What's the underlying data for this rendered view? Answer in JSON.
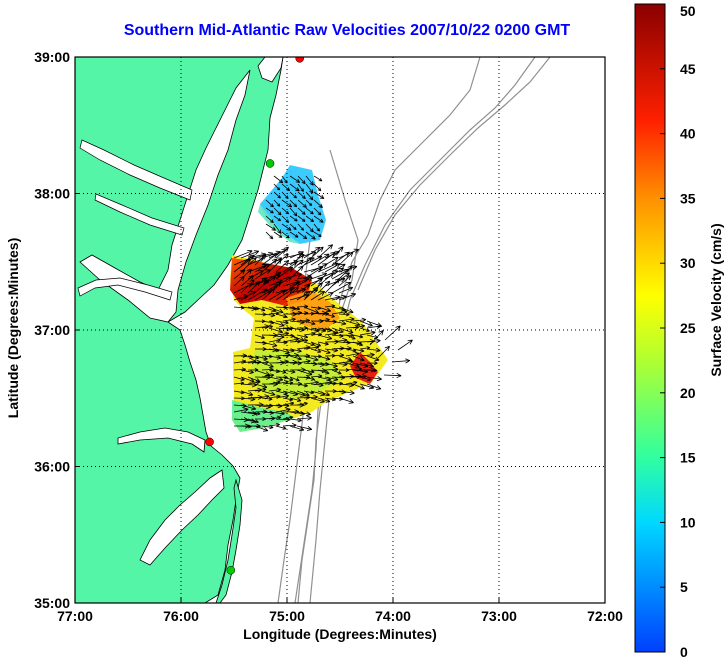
{
  "title": "Southern Mid-Atlantic Raw Velocities 2007/10/22 0200 GMT",
  "xlabel": "Longitude (Degrees:Minutes)",
  "ylabel": "Latitude (Degrees:Minutes)",
  "colorbar": {
    "label": "Surface Velocity (cm/s)",
    "min": 0,
    "max": 50,
    "ticks": [
      "0",
      "5",
      "10",
      "15",
      "20",
      "25",
      "30",
      "35",
      "40",
      "45",
      "50"
    ]
  },
  "axes": {
    "x_ticks": [
      "77:00",
      "76:00",
      "75:00",
      "74:00",
      "73:00",
      "72:00"
    ],
    "y_ticks": [
      "39:00",
      "38:00",
      "37:00",
      "36:00",
      "35:00"
    ],
    "lon_range": [
      -77,
      -72
    ],
    "lat_range": [
      35,
      39
    ],
    "grid": "dotted"
  },
  "colors": {
    "land": "#55f5a8",
    "coast": "#000000",
    "bathymetry": "#909090",
    "site_active": "#ff0000",
    "site_inactive": "#00cc00",
    "title": "#0000ff"
  },
  "sites": [
    {
      "status": "active",
      "lon": -74.88,
      "lat": 38.99
    },
    {
      "status": "inactive",
      "lon": -75.16,
      "lat": 38.22
    },
    {
      "status": "active",
      "lon": -75.73,
      "lat": 36.18
    },
    {
      "status": "inactive",
      "lon": -75.53,
      "lat": 35.24
    }
  ]
}
